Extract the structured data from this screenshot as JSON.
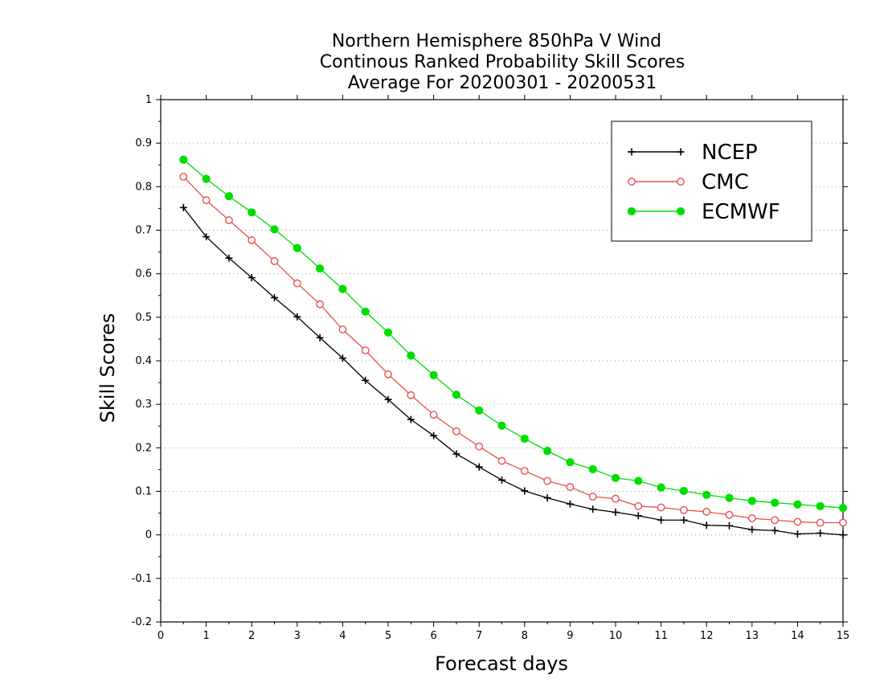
{
  "chart_data": {
    "type": "line",
    "title_lines": [
      "Northern Hemisphere 850hPa V Wind",
      "Continous Ranked Probability Skill Scores",
      "Average For 20200301 - 20200531"
    ],
    "xlabel": "Forecast days",
    "ylabel": "Skill Scores",
    "xlim": [
      0,
      15
    ],
    "ylim": [
      -0.2,
      1
    ],
    "xticks": [
      0,
      1,
      2,
      3,
      4,
      5,
      6,
      7,
      8,
      9,
      10,
      11,
      12,
      13,
      14,
      15
    ],
    "xtick_labels": [
      "0",
      "1",
      "2",
      "3",
      "4",
      "5",
      "6",
      "7",
      "8",
      "9",
      "10",
      "11",
      "12",
      "13",
      "14",
      "15"
    ],
    "yticks": [
      -0.2,
      -0.1,
      0,
      0.1,
      0.2,
      0.3,
      0.4,
      0.5,
      0.6,
      0.7,
      0.8,
      0.9,
      1
    ],
    "ytick_labels": [
      "-0.2",
      "-0.1",
      "0",
      "0.1",
      "0.2",
      "0.3",
      "0.4",
      "0.5",
      "0.6",
      "0.7",
      "0.8",
      "0.9",
      "1"
    ],
    "grid": true,
    "legend_position": "top-right",
    "x": [
      0.5,
      1,
      1.5,
      2,
      2.5,
      3,
      3.5,
      4,
      4.5,
      5,
      5.5,
      6,
      6.5,
      7,
      7.5,
      8,
      8.5,
      9,
      9.5,
      10,
      10.5,
      11,
      11.5,
      12,
      12.5,
      13,
      13.5,
      14,
      14.5,
      15
    ],
    "series": [
      {
        "name": "NCEP",
        "color": "#000000",
        "marker": "plus",
        "values": [
          0.752,
          0.685,
          0.636,
          0.591,
          0.545,
          0.501,
          0.453,
          0.406,
          0.355,
          0.311,
          0.265,
          0.228,
          0.186,
          0.156,
          0.126,
          0.101,
          0.085,
          0.071,
          0.059,
          0.052,
          0.044,
          0.034,
          0.034,
          0.022,
          0.021,
          0.012,
          0.01,
          0.002,
          0.004,
          0.0
        ]
      },
      {
        "name": "CMC",
        "color": "#e8504a",
        "marker": "open-circle",
        "values": [
          0.823,
          0.769,
          0.723,
          0.677,
          0.629,
          0.578,
          0.53,
          0.472,
          0.424,
          0.369,
          0.321,
          0.276,
          0.238,
          0.203,
          0.17,
          0.147,
          0.124,
          0.11,
          0.088,
          0.083,
          0.066,
          0.063,
          0.057,
          0.053,
          0.046,
          0.038,
          0.034,
          0.03,
          0.028,
          0.028
        ]
      },
      {
        "name": "ECMWF",
        "color": "#00dd00",
        "marker": "filled-circle",
        "values": [
          0.862,
          0.818,
          0.778,
          0.741,
          0.702,
          0.659,
          0.612,
          0.565,
          0.513,
          0.465,
          0.412,
          0.367,
          0.322,
          0.286,
          0.251,
          0.221,
          0.193,
          0.167,
          0.151,
          0.131,
          0.124,
          0.109,
          0.101,
          0.092,
          0.085,
          0.078,
          0.074,
          0.07,
          0.066,
          0.062
        ]
      }
    ]
  }
}
